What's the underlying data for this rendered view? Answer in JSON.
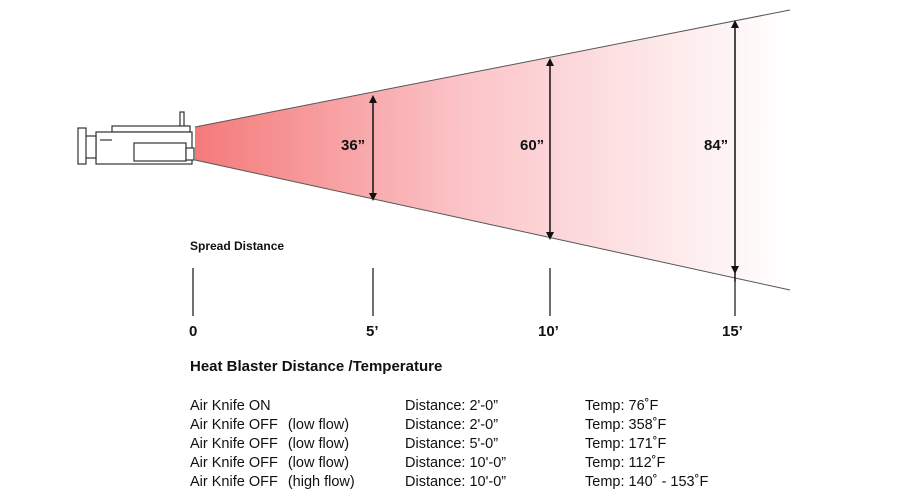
{
  "dimensions": {
    "d36": "36”",
    "d60": "60”",
    "d84": "84”"
  },
  "spread_label": "Spread Distance",
  "scale_labels": {
    "s0": "0",
    "s5": "5’",
    "s10": "10’",
    "s15": "15’"
  },
  "section_title": "Heat Blaster Distance /Temperature",
  "rows": [
    {
      "mode": "Air Knife ON",
      "flow": "",
      "distance": "Distance: 2'-0”",
      "temp": "Temp: 76˚F"
    },
    {
      "mode": "Air Knife OFF",
      "flow": "(low flow)",
      "distance": "Distance: 2'-0”",
      "temp": "Temp: 358˚F"
    },
    {
      "mode": "Air Knife OFF",
      "flow": "(low flow)",
      "distance": "Distance: 5'-0”",
      "temp": "Temp: 171˚F"
    },
    {
      "mode": "Air Knife OFF",
      "flow": "(low flow)",
      "distance": "Distance: 10'-0”",
      "temp": "Temp: 112˚F"
    },
    {
      "mode": "Air Knife OFF",
      "flow": "(high flow)",
      "distance": "Distance: 10'-0”",
      "temp": "Temp: 140˚ - 153˚F"
    }
  ],
  "colors": {
    "heat_start": "#f47a7a",
    "heat_end": "#ffffff",
    "line": "#555555"
  }
}
